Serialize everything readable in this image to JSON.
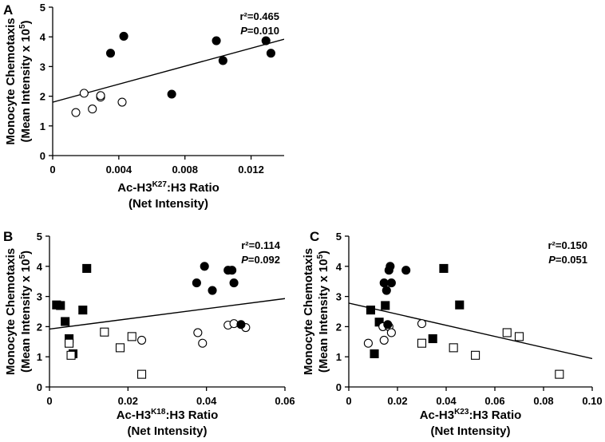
{
  "chart_data": [
    {
      "panel": "A",
      "type": "scatter",
      "xlabel": "Ac-H3K27:H3 Ratio",
      "xlabel_line2": "(Net Intensity)",
      "xlabel_parts": [
        "Ac-H3",
        "K27",
        ":H3 Ratio"
      ],
      "ylabel_line1": "Monocyte Chemotaxis",
      "ylabel_line2": "(Mean Intensity x 10",
      "ylabel_sup": "5",
      "ylabel_close": ")",
      "xlim": [
        0,
        0.014
      ],
      "ylim": [
        0,
        5
      ],
      "xticks": [
        0,
        0.004,
        0.008,
        0.012
      ],
      "xtick_labels": [
        "0",
        "0.004",
        "0.008",
        "0.012"
      ],
      "yticks": [
        0,
        1,
        2,
        3,
        4,
        5
      ],
      "ytick_labels": [
        "0",
        "1",
        "2",
        "3",
        "4",
        "5"
      ],
      "stats": {
        "r2_label": "r²=0.465",
        "p_label": "P",
        "p_value": "=0.010"
      },
      "series": [
        {
          "name": "open circles",
          "marker": "circle",
          "fill": "open",
          "points": [
            [
              0.0014,
              1.45
            ],
            [
              0.0019,
              2.1
            ],
            [
              0.0024,
              1.57
            ],
            [
              0.0029,
              1.97
            ],
            [
              0.0029,
              2.02
            ],
            [
              0.0042,
              1.8
            ]
          ]
        },
        {
          "name": "filled circles",
          "marker": "circle",
          "fill": "filled",
          "points": [
            [
              0.0035,
              3.45
            ],
            [
              0.0043,
              4.02
            ],
            [
              0.0072,
              2.07
            ],
            [
              0.0099,
              3.87
            ],
            [
              0.0103,
              3.2
            ],
            [
              0.0129,
              3.87
            ],
            [
              0.0132,
              3.45
            ]
          ]
        }
      ],
      "fit_line": [
        [
          0,
          1.8
        ],
        [
          0.014,
          3.92
        ]
      ]
    },
    {
      "panel": "B",
      "type": "scatter",
      "xlabel": "Ac-H3K18:H3 Ratio",
      "xlabel_line2": "(Net Intensity)",
      "xlabel_parts": [
        "Ac-H3",
        "K18",
        ":H3 Ratio"
      ],
      "ylabel_line1": "Monocyte Chemotaxis",
      "ylabel_line2": "(Mean Intensity x 10",
      "ylabel_sup": "5",
      "ylabel_close": ")",
      "xlim": [
        0,
        0.06
      ],
      "ylim": [
        0,
        5
      ],
      "xticks": [
        0,
        0.02,
        0.04,
        0.06
      ],
      "xtick_labels": [
        "0",
        "0.02",
        "0.04",
        "0.06"
      ],
      "yticks": [
        0,
        1,
        2,
        3,
        4,
        5
      ],
      "ytick_labels": [
        "0",
        "1",
        "2",
        "3",
        "4",
        "5"
      ],
      "stats": {
        "r2_label": "r²=0.114",
        "p_label": "P",
        "p_value": "=0.092"
      },
      "series": [
        {
          "name": "filled squares",
          "marker": "square",
          "fill": "filled",
          "points": [
            [
              0.0018,
              2.72
            ],
            [
              0.0028,
              2.7
            ],
            [
              0.004,
              2.17
            ],
            [
              0.005,
              1.6
            ],
            [
              0.006,
              1.1
            ],
            [
              0.0085,
              2.55
            ],
            [
              0.0095,
              3.93
            ]
          ]
        },
        {
          "name": "open squares",
          "marker": "square",
          "fill": "open",
          "points": [
            [
              0.005,
              1.45
            ],
            [
              0.0055,
              1.05
            ],
            [
              0.014,
              1.82
            ],
            [
              0.018,
              1.3
            ],
            [
              0.021,
              1.67
            ],
            [
              0.0235,
              0.42
            ]
          ]
        },
        {
          "name": "open circles",
          "marker": "circle",
          "fill": "open",
          "points": [
            [
              0.0235,
              1.55
            ],
            [
              0.0378,
              1.8
            ],
            [
              0.039,
              1.45
            ],
            [
              0.0455,
              2.05
            ],
            [
              0.047,
              2.1
            ],
            [
              0.05,
              1.97
            ]
          ]
        },
        {
          "name": "filled circles",
          "marker": "circle",
          "fill": "filled",
          "points": [
            [
              0.0375,
              3.45
            ],
            [
              0.0395,
              4.0
            ],
            [
              0.0415,
              3.2
            ],
            [
              0.0455,
              3.87
            ],
            [
              0.0465,
              3.87
            ],
            [
              0.047,
              3.45
            ],
            [
              0.0488,
              2.07
            ]
          ]
        }
      ],
      "fit_line": [
        [
          0,
          1.92
        ],
        [
          0.06,
          2.93
        ]
      ]
    },
    {
      "panel": "C",
      "type": "scatter",
      "xlabel": "Ac-H3K23:H3 Ratio",
      "xlabel_line2": "(Net Intensity)",
      "xlabel_parts": [
        "Ac-H3",
        "K23",
        ":H3 Ratio"
      ],
      "ylabel_line1": "Monocyte Chemotaxis",
      "ylabel_line2": "(Mean Intensity x 10",
      "ylabel_sup": "5",
      "ylabel_close": ")",
      "xlim": [
        0,
        0.1
      ],
      "ylim": [
        0,
        5
      ],
      "xticks": [
        0,
        0.02,
        0.04,
        0.06,
        0.08,
        0.1
      ],
      "xtick_labels": [
        "0",
        "0.02",
        "0.04",
        "0.06",
        "0.08",
        "0.10"
      ],
      "yticks": [
        0,
        1,
        2,
        3,
        4,
        5
      ],
      "ytick_labels": [
        "0",
        "1",
        "2",
        "3",
        "4",
        "5"
      ],
      "stats": {
        "r2_label": "r²=0.150",
        "p_label": "P",
        "p_value": "=0.051"
      },
      "series": [
        {
          "name": "filled squares",
          "marker": "square",
          "fill": "filled",
          "points": [
            [
              0.009,
              2.55
            ],
            [
              0.0105,
              1.1
            ],
            [
              0.0125,
              2.15
            ],
            [
              0.015,
              2.7
            ],
            [
              0.0345,
              1.6
            ],
            [
              0.039,
              3.93
            ],
            [
              0.0455,
              2.72
            ]
          ]
        },
        {
          "name": "open squares",
          "marker": "square",
          "fill": "open",
          "points": [
            [
              0.03,
              1.45
            ],
            [
              0.043,
              1.3
            ],
            [
              0.052,
              1.05
            ],
            [
              0.065,
              1.8
            ],
            [
              0.07,
              1.67
            ],
            [
              0.0865,
              0.42
            ]
          ]
        },
        {
          "name": "open circles",
          "marker": "circle",
          "fill": "open",
          "points": [
            [
              0.008,
              1.45
            ],
            [
              0.014,
              2.0
            ],
            [
              0.0145,
              1.55
            ],
            [
              0.0165,
              2.0
            ],
            [
              0.0175,
              1.8
            ],
            [
              0.03,
              2.1
            ]
          ]
        },
        {
          "name": "filled circles",
          "marker": "circle",
          "fill": "filled",
          "points": [
            [
              0.0145,
              3.45
            ],
            [
              0.0155,
              3.2
            ],
            [
              0.016,
              2.07
            ],
            [
              0.0165,
              3.87
            ],
            [
              0.017,
              4.0
            ],
            [
              0.0175,
              3.45
            ],
            [
              0.0235,
              3.87
            ]
          ]
        }
      ],
      "fit_line": [
        [
          0,
          2.78
        ],
        [
          0.1,
          0.94
        ]
      ]
    }
  ]
}
